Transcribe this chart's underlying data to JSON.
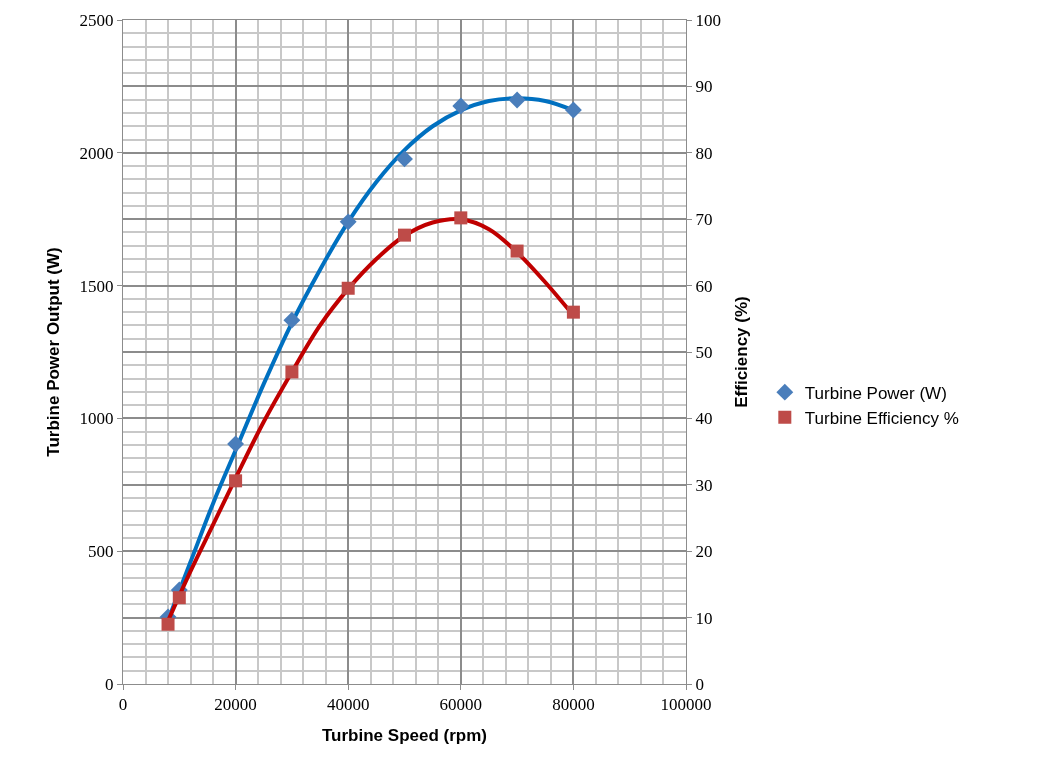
{
  "chart_data": {
    "type": "scatter",
    "xlabel": "Turbine Speed (rpm)",
    "ylabel": "Turbine Power Output (W)",
    "y2label": "Efficiency (%)",
    "x": [
      8000,
      10000,
      20000,
      30000,
      40000,
      50000,
      60000,
      70000,
      80000
    ],
    "series": [
      {
        "name": "Turbine Power (W)",
        "color": "#4a7ebb",
        "marker": "diamond",
        "values": [
          252,
          354,
          904,
          1370,
          1740,
          1977,
          2176,
          2199,
          2161
        ]
      },
      {
        "name": "Turbine Efficiency %",
        "color": "#be4b48",
        "marker": "square",
        "axis": "y2",
        "values": [
          9.0,
          13.0,
          30.6,
          47,
          59.6,
          67.6,
          70.2,
          65.2,
          56
        ]
      },
      {
        "type": "line",
        "color": "#0070c0",
        "x": [
          8000,
          12000,
          16000,
          20000,
          25000,
          30000,
          35000,
          40000,
          45000,
          50000,
          55000,
          60000,
          65000,
          70000,
          75000,
          80000
        ],
        "values": [
          240,
          460,
          680,
          880,
          1130,
          1360,
          1560,
          1740,
          1890,
          2010,
          2100,
          2160,
          2195,
          2205,
          2195,
          2160
        ]
      },
      {
        "type": "line",
        "color": "#c00000",
        "axis": "y2",
        "x": [
          8000,
          12000,
          16000,
          20000,
          25000,
          30000,
          35000,
          40000,
          45000,
          50000,
          55000,
          60000,
          65000,
          70000,
          75000,
          80000
        ],
        "values": [
          9.5,
          17,
          24,
          31,
          39.5,
          47,
          54,
          59.5,
          64,
          67.5,
          69.5,
          70,
          68.5,
          65,
          60.5,
          55.5
        ]
      }
    ],
    "xlim": [
      0,
      100000
    ],
    "xticks": [
      0,
      20000,
      40000,
      60000,
      80000,
      100000
    ],
    "ylim": [
      0,
      2500
    ],
    "yticks": [
      0,
      500,
      1000,
      1500,
      2000,
      2500
    ],
    "y2lim": [
      0,
      100
    ],
    "y2ticks": [
      0,
      10,
      20,
      30,
      40,
      50,
      60,
      70,
      80,
      90,
      100
    ],
    "grid": true,
    "legend": "right"
  }
}
